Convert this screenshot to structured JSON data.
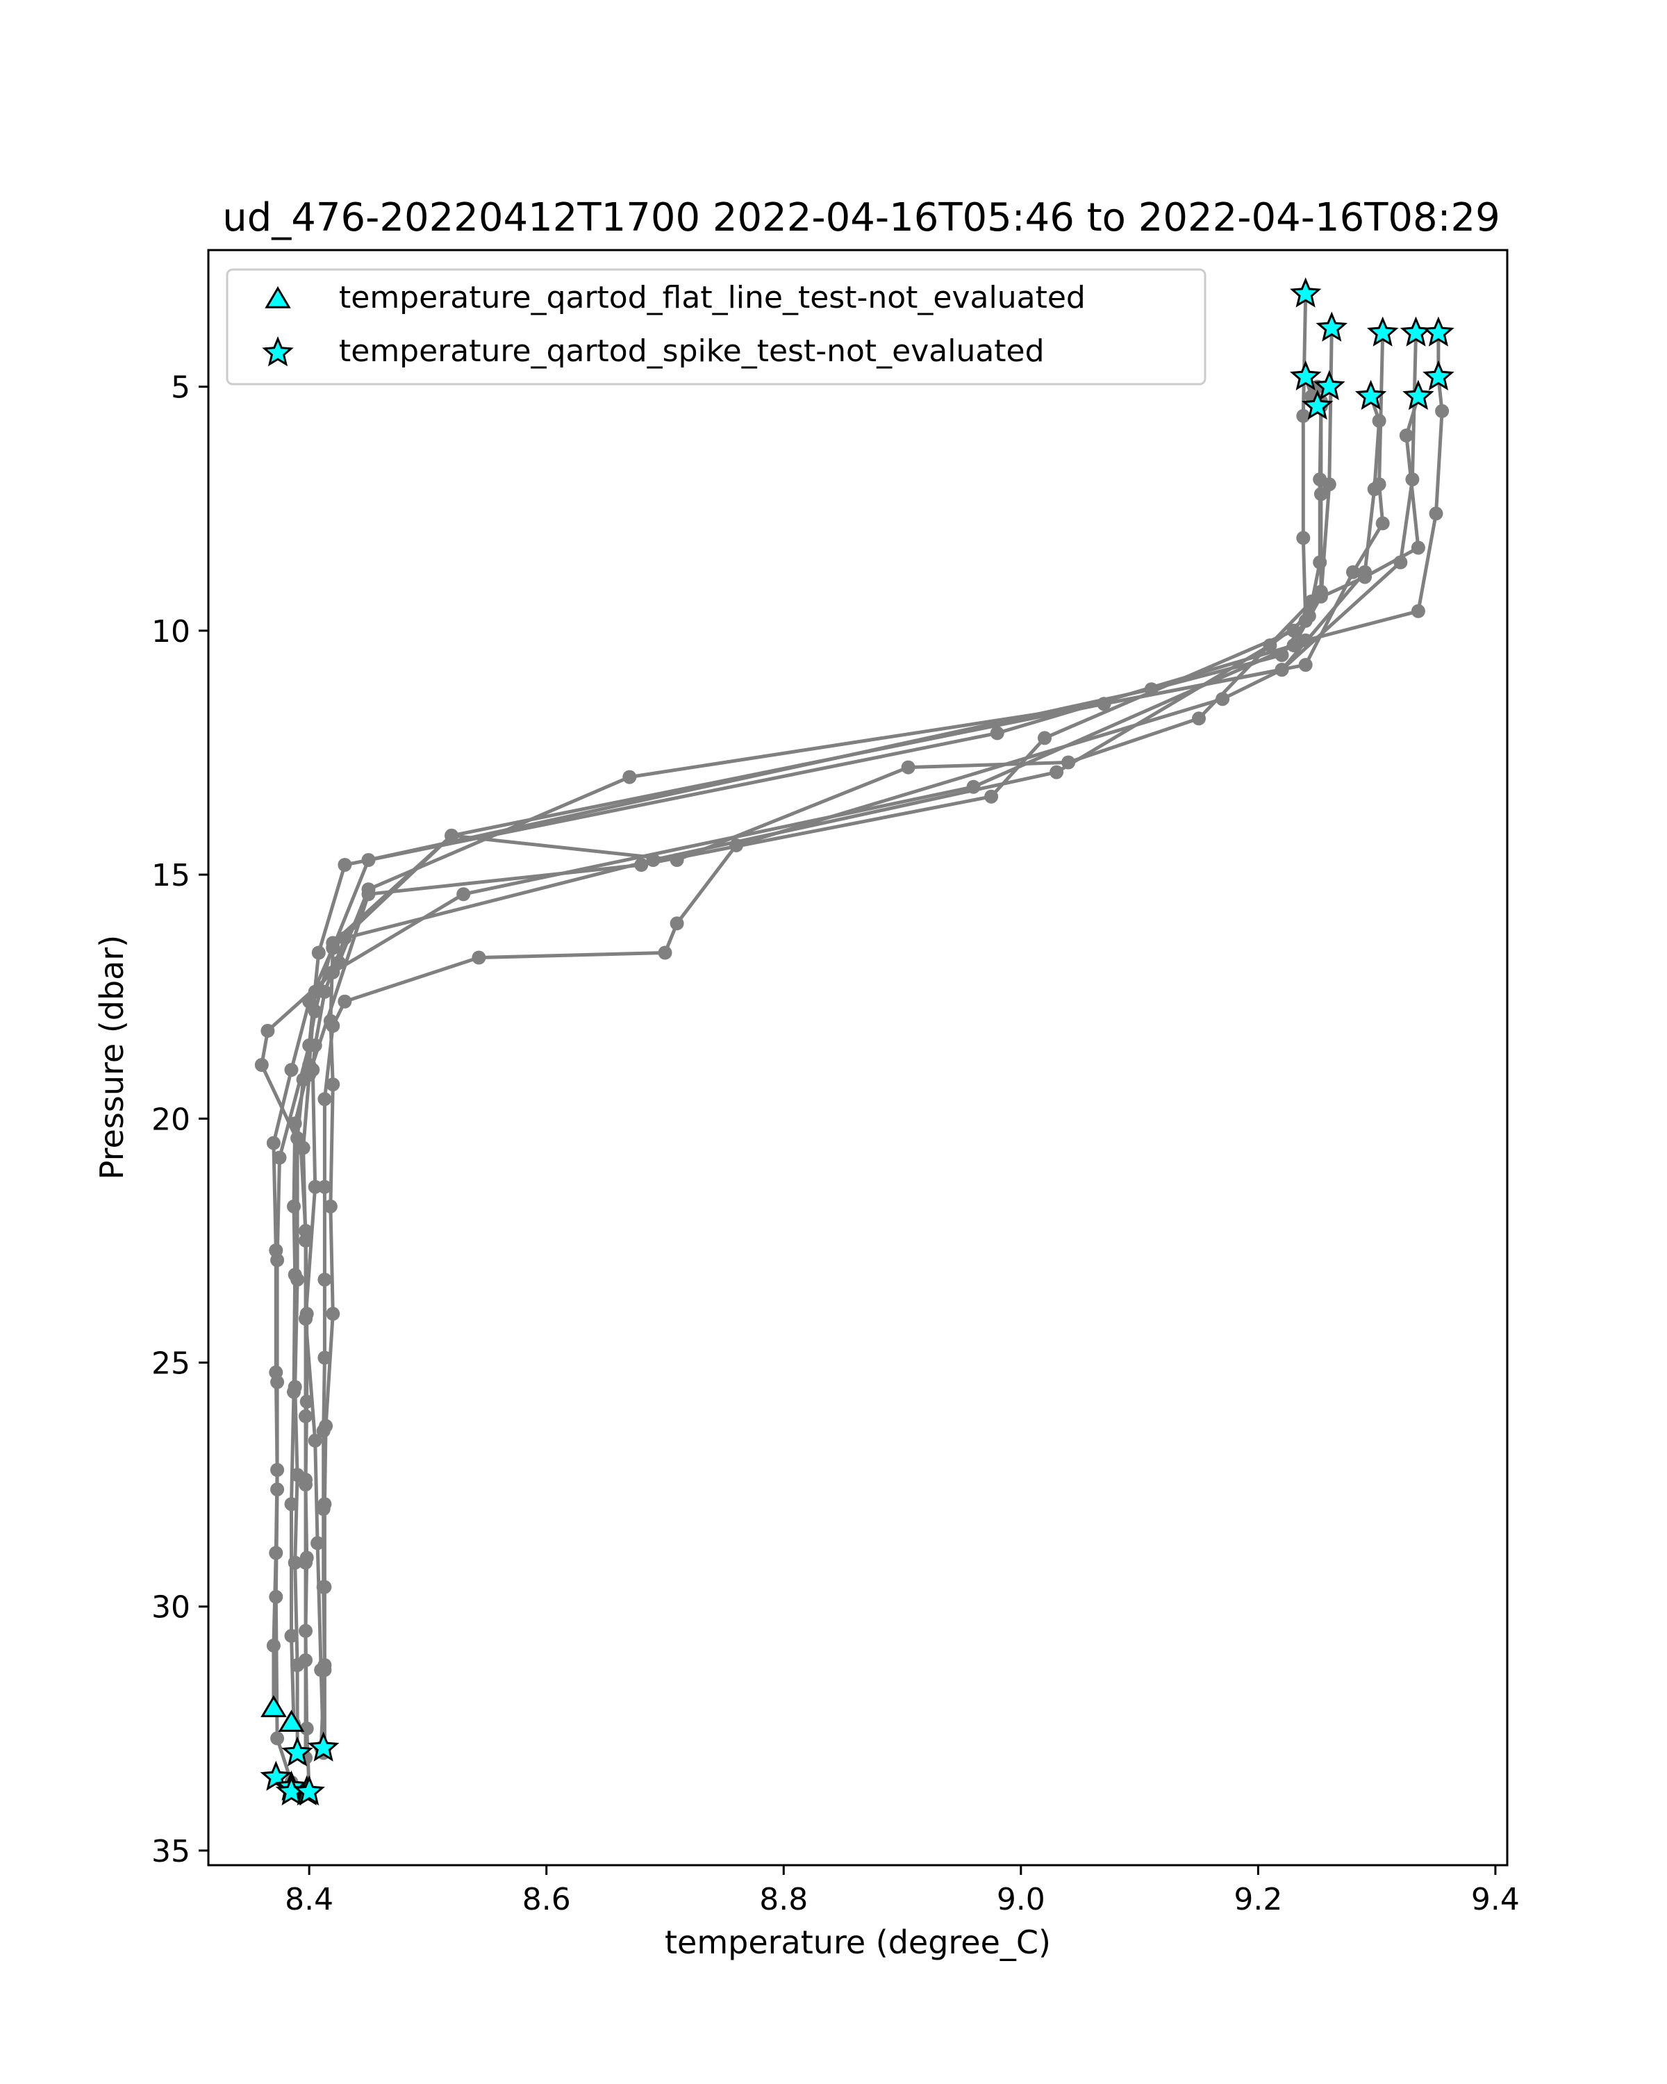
{
  "chart_data": {
    "type": "scatter",
    "title": "ud_476-20220412T1700 2022-04-16T05:46 to 2022-04-16T08:29",
    "xlabel": "temperature (degree_C)",
    "ylabel": "Pressure (dbar)",
    "xlim": [
      8.315,
      9.41
    ],
    "ylim": [
      35.3,
      2.2
    ],
    "y_inverted": true,
    "grid": false,
    "legend_position": "top-left",
    "x_ticks": [
      8.4,
      8.6,
      8.8,
      9.0,
      9.2,
      9.4
    ],
    "x_tick_labels": [
      "8.4",
      "8.6",
      "8.8",
      "9.0",
      "9.2",
      "9.4"
    ],
    "y_ticks": [
      5,
      10,
      15,
      20,
      25,
      30,
      35
    ],
    "y_tick_labels": [
      "5",
      "10",
      "15",
      "20",
      "25",
      "30",
      "35"
    ],
    "colors": {
      "profile": "#808080",
      "marker_fill": "#00ffff",
      "marker_edge": "#000000"
    },
    "series": [
      {
        "values": [
          [
            9.24,
            3.1
          ],
          [
            9.238,
            5.6
          ],
          [
            9.238,
            8.1
          ],
          [
            9.24,
            9.8
          ],
          [
            9.22,
            10.5
          ],
          [
            9.11,
            11.2
          ],
          [
            8.45,
            14.7
          ],
          [
            8.42,
            16.5
          ],
          [
            8.4,
            17.6
          ],
          [
            8.385,
            19.0
          ],
          [
            8.37,
            20.5
          ],
          [
            8.372,
            22.7
          ],
          [
            8.372,
            25.2
          ],
          [
            8.373,
            27.2
          ],
          [
            8.372,
            28.9
          ],
          [
            8.37,
            30.8
          ],
          [
            8.37,
            32.1
          ]
        ]
      },
      {
        "values": [
          [
            9.262,
            3.8
          ],
          [
            9.26,
            7.0
          ],
          [
            9.253,
            9.3
          ],
          [
            9.23,
            10.3
          ],
          [
            8.98,
            12.1
          ],
          [
            8.43,
            14.8
          ],
          [
            8.408,
            16.6
          ],
          [
            8.4,
            18.5
          ],
          [
            8.375,
            20.8
          ],
          [
            8.373,
            22.9
          ],
          [
            8.373,
            25.4
          ],
          [
            8.373,
            27.6
          ],
          [
            8.372,
            29.8
          ],
          [
            8.373,
            32.7
          ],
          [
            8.385,
            33.6
          ]
        ]
      },
      {
        "values": [
          [
            9.305,
            3.9
          ],
          [
            9.302,
            7.0
          ],
          [
            9.305,
            7.8
          ],
          [
            9.28,
            8.8
          ],
          [
            9.24,
            10.7
          ],
          [
            9.07,
            11.5
          ],
          [
            8.67,
            13.0
          ],
          [
            8.45,
            15.3
          ],
          [
            8.425,
            16.8
          ],
          [
            8.405,
            17.4
          ],
          [
            8.4,
            18.9
          ],
          [
            8.388,
            20.1
          ],
          [
            8.387,
            21.8
          ],
          [
            8.388,
            23.2
          ],
          [
            8.387,
            25.6
          ],
          [
            8.385,
            27.9
          ],
          [
            8.385,
            30.6
          ],
          [
            8.387,
            32.4
          ]
        ]
      },
      {
        "values": [
          [
            9.333,
            3.9
          ],
          [
            9.33,
            6.9
          ],
          [
            9.32,
            8.6
          ],
          [
            9.22,
            10.8
          ],
          [
            9.07,
            11.5
          ],
          [
            8.52,
            14.2
          ],
          [
            8.42,
            16.4
          ],
          [
            8.405,
            17.8
          ],
          [
            8.395,
            19.2
          ],
          [
            8.39,
            20.4
          ],
          [
            8.39,
            23.3
          ],
          [
            8.388,
            25.5
          ],
          [
            8.39,
            27.3
          ],
          [
            8.388,
            29.1
          ],
          [
            8.39,
            31.2
          ],
          [
            8.39,
            33.0
          ]
        ]
      },
      {
        "values": [
          [
            9.352,
            3.9
          ],
          [
            9.352,
            4.8
          ],
          [
            9.355,
            5.5
          ],
          [
            9.35,
            7.6
          ],
          [
            9.335,
            9.6
          ],
          [
            9.24,
            10.2
          ],
          [
            8.96,
            13.2
          ],
          [
            8.53,
            15.4
          ],
          [
            8.42,
            17.0
          ],
          [
            8.365,
            18.2
          ],
          [
            8.36,
            18.9
          ],
          [
            8.393,
            20.6
          ],
          [
            8.397,
            22.3
          ],
          [
            8.398,
            24.0
          ],
          [
            8.398,
            25.8
          ],
          [
            8.397,
            27.5
          ],
          [
            8.398,
            29.0
          ],
          [
            8.397,
            30.5
          ],
          [
            8.398,
            32.5
          ],
          [
            8.4,
            33.8
          ]
        ]
      },
      {
        "values": [
          [
            9.25,
            5.0
          ],
          [
            9.253,
            5.4
          ],
          [
            9.252,
            6.9
          ],
          [
            9.252,
            8.6
          ],
          [
            9.243,
            9.7
          ],
          [
            9.21,
            10.3
          ],
          [
            9.03,
            12.9
          ],
          [
            8.69,
            14.7
          ],
          [
            8.43,
            16.3
          ],
          [
            8.413,
            17.4
          ],
          [
            8.405,
            18.5
          ],
          [
            8.403,
            19.0
          ],
          [
            8.405,
            21.4
          ],
          [
            8.397,
            24.1
          ],
          [
            8.405,
            26.6
          ],
          [
            8.407,
            28.7
          ],
          [
            8.41,
            31.3
          ],
          [
            8.412,
            33.0
          ]
        ]
      },
      {
        "values": [
          [
            9.295,
            5.2
          ],
          [
            9.302,
            5.7
          ],
          [
            9.298,
            7.1
          ],
          [
            9.29,
            8.8
          ],
          [
            9.22,
            10.8
          ],
          [
            9.17,
            11.4
          ],
          [
            8.76,
            14.4
          ],
          [
            8.71,
            16.0
          ],
          [
            8.7,
            16.6
          ],
          [
            8.543,
            16.7
          ],
          [
            8.43,
            17.6
          ],
          [
            8.42,
            18.1
          ],
          [
            8.413,
            19.6
          ],
          [
            8.413,
            21.4
          ],
          [
            8.413,
            23.3
          ],
          [
            8.413,
            24.9
          ],
          [
            8.412,
            26.4
          ],
          [
            8.412,
            28.0
          ],
          [
            8.412,
            29.6
          ],
          [
            8.413,
            31.2
          ],
          [
            8.41,
            32.9
          ]
        ]
      },
      {
        "values": [
          [
            9.335,
            5.2
          ],
          [
            9.325,
            6.0
          ],
          [
            9.335,
            8.3
          ],
          [
            9.29,
            8.9
          ],
          [
            9.245,
            9.4
          ],
          [
            9.15,
            11.8
          ],
          [
            9.04,
            12.7
          ],
          [
            8.905,
            12.8
          ],
          [
            8.71,
            14.7
          ],
          [
            8.52,
            14.2
          ],
          [
            8.42,
            16.5
          ],
          [
            8.418,
            18.0
          ],
          [
            8.42,
            19.3
          ],
          [
            8.418,
            21.8
          ],
          [
            8.42,
            24.0
          ],
          [
            8.414,
            26.3
          ],
          [
            8.413,
            27.9
          ],
          [
            8.413,
            29.6
          ],
          [
            8.413,
            31.3
          ],
          [
            8.413,
            32.9
          ]
        ]
      },
      {
        "values": [
          [
            9.24,
            4.8
          ],
          [
            9.245,
            5.2
          ],
          [
            9.253,
            5.3
          ],
          [
            9.253,
            7.2
          ],
          [
            9.253,
            9.2
          ],
          [
            9.23,
            10.0
          ],
          [
            9.02,
            12.2
          ],
          [
            8.975,
            13.4
          ],
          [
            8.68,
            14.8
          ],
          [
            8.45,
            15.4
          ],
          [
            8.4,
            19.1
          ],
          [
            8.395,
            20.6
          ],
          [
            8.397,
            22.5
          ],
          [
            8.397,
            24.1
          ],
          [
            8.397,
            26.1
          ],
          [
            8.397,
            27.4
          ],
          [
            8.397,
            29.1
          ],
          [
            8.397,
            31.1
          ],
          [
            8.397,
            33.1
          ]
        ]
      }
    ],
    "flat_line_markers": {
      "name": "temperature_qartod_flat_line_test-not_evaluated",
      "marker": "triangle",
      "values": [
        [
          8.37,
          32.1
        ],
        [
          8.385,
          32.4
        ]
      ]
    },
    "spike_markers": {
      "name": "temperature_qartod_spike_test-not_evaluated",
      "marker": "star",
      "values": [
        [
          9.24,
          3.1
        ],
        [
          9.262,
          3.8
        ],
        [
          9.305,
          3.9
        ],
        [
          9.333,
          3.9
        ],
        [
          9.352,
          3.9
        ],
        [
          9.24,
          4.8
        ],
        [
          9.352,
          4.8
        ],
        [
          9.26,
          5.0
        ],
        [
          9.25,
          5.4
        ],
        [
          9.295,
          5.2
        ],
        [
          9.335,
          5.2
        ],
        [
          8.412,
          32.9
        ],
        [
          8.39,
          33.0
        ],
        [
          8.372,
          33.5
        ],
        [
          8.385,
          33.7
        ],
        [
          8.398,
          33.8
        ],
        [
          8.385,
          33.8
        ],
        [
          8.4,
          33.8
        ]
      ]
    }
  }
}
